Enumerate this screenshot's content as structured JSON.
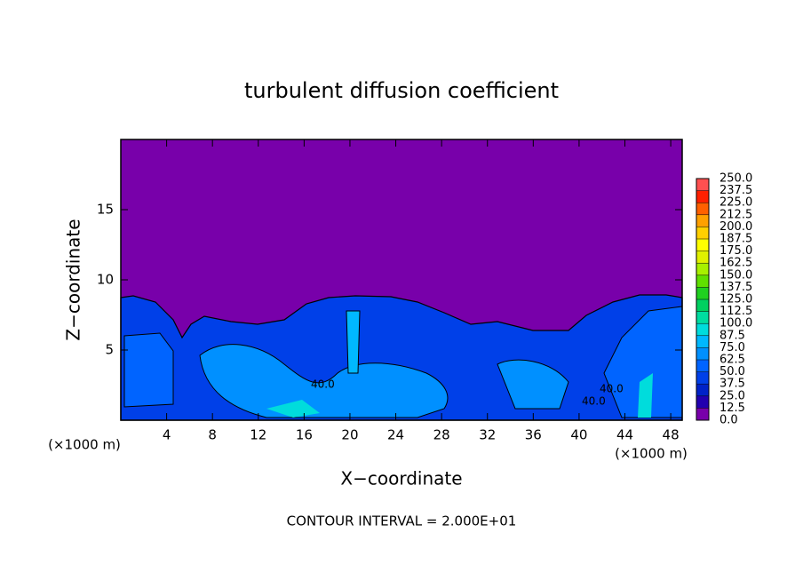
{
  "chart_data": {
    "type": "contour",
    "title": "turbulent diffusion coefficient",
    "xlabel": "X−coordinate",
    "ylabel": "Z−coordinate",
    "x_unit_left": "(×1000 m)",
    "x_unit_right": "(×1000 m)",
    "footnote": "CONTOUR INTERVAL = 2.000E+01",
    "xlim": [
      0,
      49
    ],
    "ylim": [
      0,
      20
    ],
    "xticks": [
      4,
      8,
      12,
      16,
      20,
      24,
      28,
      32,
      36,
      40,
      44,
      48
    ],
    "yticks": [
      5,
      10,
      15
    ],
    "annotations": [
      "40.0",
      "40.0",
      "40.0"
    ],
    "colorbar": {
      "ticks": [
        {
          "value": 0,
          "label": "0.0"
        },
        {
          "value": 12.5,
          "label": "12.5"
        },
        {
          "value": 25,
          "label": "25.0"
        },
        {
          "value": 37.5,
          "label": "37.5"
        },
        {
          "value": 50,
          "label": "50.0"
        },
        {
          "value": 62.5,
          "label": "62.5"
        },
        {
          "value": 75,
          "label": "75.0"
        },
        {
          "value": 87.5,
          "label": "87.5"
        },
        {
          "value": 100,
          "label": "100.0"
        },
        {
          "value": 112.5,
          "label": "112.5"
        },
        {
          "value": 125,
          "label": "125.0"
        },
        {
          "value": 137.5,
          "label": "137.5"
        },
        {
          "value": 150,
          "label": "150.0"
        },
        {
          "value": 162.5,
          "label": "162.5"
        },
        {
          "value": 175,
          "label": "175.0"
        },
        {
          "value": 187.5,
          "label": "187.5"
        },
        {
          "value": 200,
          "label": "200.0"
        },
        {
          "value": 212.5,
          "label": "212.5"
        },
        {
          "value": 225,
          "label": "225.0"
        },
        {
          "value": 237.5,
          "label": "237.5"
        },
        {
          "value": 250,
          "label": "250.0"
        }
      ],
      "colors": [
        "#7800aa",
        "#2200b0",
        "#0022c8",
        "#0040e8",
        "#0064ff",
        "#0090ff",
        "#00b8ff",
        "#00dcdc",
        "#00dca0",
        "#00d060",
        "#20d020",
        "#60e000",
        "#a8f000",
        "#e0f000",
        "#ffff00",
        "#ffd000",
        "#ffa000",
        "#ff6000",
        "#ff2000",
        "#ff5050"
      ]
    }
  }
}
